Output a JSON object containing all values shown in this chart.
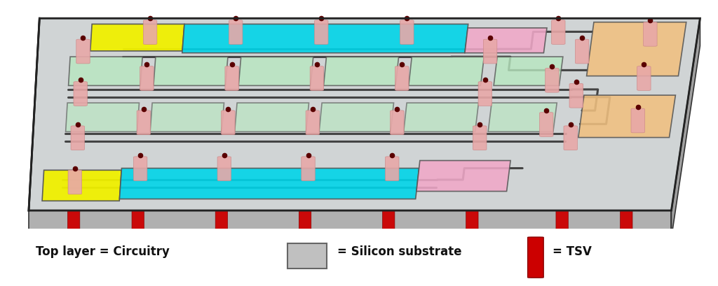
{
  "background_color": "#ffffff",
  "figure_size": [
    10.24,
    4.09
  ],
  "dpi": 100,
  "tsv_color_top": "#e8a8a8",
  "tsv_dot_color": "#5a0000",
  "tsv_red": "#cc0000",
  "tsv_red_dark": "#880000",
  "cyan_color": "#00d4e8",
  "yellow_color": "#f0f000",
  "pink_color": "#f0a8c8",
  "orange_color": "#f0c080",
  "green_color": "#b8e8c0",
  "wire_color": "#444444",
  "substrate_top": "#c8c8c8",
  "substrate_front": "#b0b0b0",
  "substrate_right": "#a0a0a0",
  "glass_fill": "#e8f8ff",
  "glass_edge": "#333333",
  "legend_items": {
    "text1": "Top layer = Circuitry",
    "text2": "= Silicon substrate",
    "text3": "= TSV",
    "fontsize": 12,
    "fontweight": "bold"
  }
}
